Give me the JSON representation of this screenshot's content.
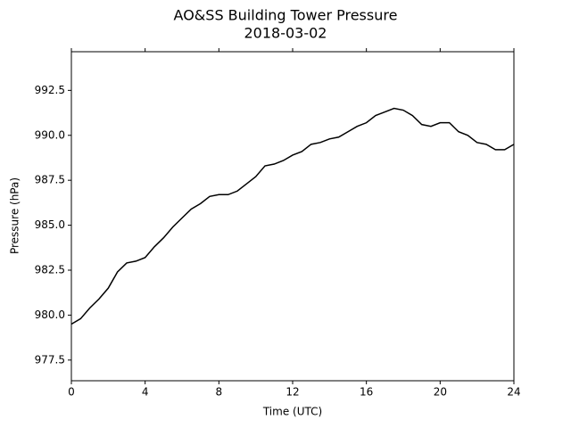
{
  "chart_data": {
    "type": "line",
    "title": "AO&SS Building Tower Pressure",
    "subtitle": "2018-03-02",
    "x_label": "Time (UTC)",
    "y_label": "Pressure (hPa)",
    "x": [
      0,
      0.5,
      1,
      1.5,
      2,
      2.5,
      3,
      3.5,
      4,
      4.5,
      5,
      5.5,
      6,
      6.5,
      7,
      7.5,
      8,
      8.5,
      9,
      9.5,
      10,
      10.5,
      11,
      11.5,
      12,
      12.5,
      13,
      13.5,
      14,
      14.5,
      15,
      15.5,
      16,
      16.5,
      17,
      17.5,
      18,
      18.5,
      19,
      19.5,
      20,
      20.5,
      21,
      21.5,
      22,
      22.5,
      23,
      23.5,
      24
    ],
    "series": [
      {
        "color": "#000000",
        "values": [
          979.5,
          979.8,
          980.4,
          980.9,
          981.5,
          982.4,
          982.9,
          983.0,
          983.2,
          983.8,
          984.3,
          984.9,
          985.4,
          985.9,
          986.2,
          986.6,
          986.7,
          986.7,
          986.9,
          987.3,
          987.7,
          988.3,
          988.4,
          988.6,
          988.9,
          989.1,
          989.5,
          989.6,
          989.8,
          989.9,
          990.2,
          990.5,
          990.7,
          991.1,
          991.3,
          991.5,
          991.4,
          991.1,
          990.6,
          990.5,
          990.7,
          990.7,
          990.2,
          990.0,
          989.6,
          989.5,
          989.2,
          989.2,
          989.5
        ]
      }
    ],
    "xlim": [
      0,
      24
    ],
    "xticks": [
      0,
      4,
      8,
      12,
      16,
      20,
      24
    ],
    "ylim": [
      976.35,
      994.65
    ],
    "yticks": [
      977.5,
      {
        "value": 980,
        "label": "980.0"
      },
      982.5,
      {
        "value": 985,
        "label": "985.0"
      },
      987.5,
      {
        "value": 990,
        "label": "990.0"
      },
      992.5
    ]
  }
}
